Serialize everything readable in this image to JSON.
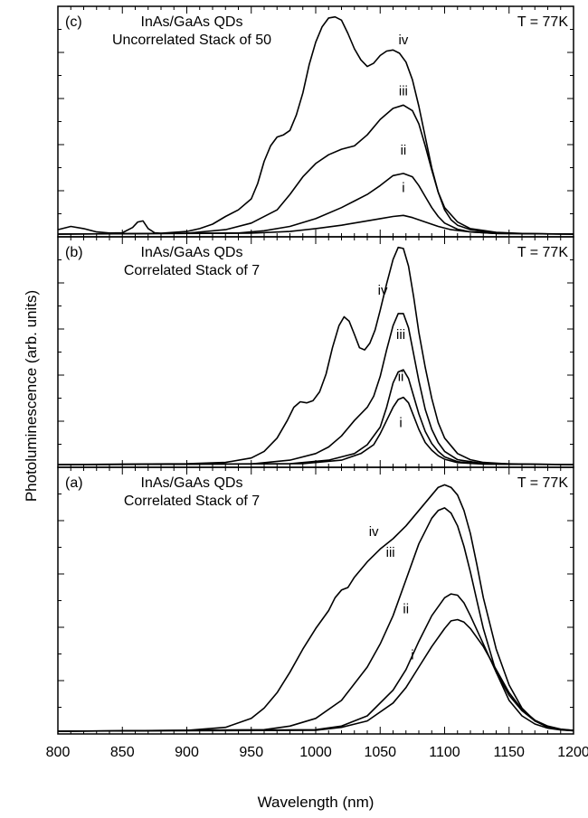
{
  "figure": {
    "ylabel": "Photoluminescence    (arb. units)",
    "xlabel": "Wavelength (nm)"
  },
  "chart_data": [
    {
      "type": "line",
      "panel": "(c)",
      "title": "InAs/GaAs QDs",
      "subtitle": "Uncorrelated Stack of 50",
      "temperature": "T = 77K",
      "xlabel": "Wavelength (nm)",
      "ylabel": "Photoluminescence (arb. units)",
      "xlim": [
        800,
        1200
      ],
      "ylim": [
        0,
        1
      ],
      "x_ticks": [
        800,
        850,
        900,
        950,
        1000,
        1050,
        1100,
        1150,
        1200
      ],
      "grid": false,
      "series": [
        {
          "name": "iv",
          "label_at": [
            1068,
            0.86
          ],
          "x": [
            800,
            810,
            820,
            830,
            840,
            850,
            858,
            862,
            866,
            870,
            875,
            880,
            890,
            900,
            910,
            920,
            930,
            940,
            950,
            955,
            960,
            965,
            970,
            975,
            980,
            985,
            990,
            995,
            1000,
            1005,
            1010,
            1015,
            1020,
            1025,
            1030,
            1035,
            1040,
            1045,
            1050,
            1055,
            1060,
            1065,
            1070,
            1075,
            1080,
            1085,
            1090,
            1095,
            1100,
            1105,
            1110,
            1120,
            1130,
            1140,
            1150,
            1160,
            1180,
            1200
          ],
          "y": [
            0.02,
            0.035,
            0.025,
            0.01,
            0.005,
            0.006,
            0.03,
            0.055,
            0.06,
            0.025,
            0.006,
            0.004,
            0.008,
            0.012,
            0.025,
            0.045,
            0.08,
            0.11,
            0.16,
            0.23,
            0.33,
            0.4,
            0.44,
            0.45,
            0.47,
            0.54,
            0.64,
            0.77,
            0.87,
            0.94,
            0.98,
            0.985,
            0.97,
            0.91,
            0.84,
            0.79,
            0.76,
            0.775,
            0.81,
            0.83,
            0.835,
            0.82,
            0.78,
            0.7,
            0.58,
            0.44,
            0.3,
            0.19,
            0.11,
            0.065,
            0.04,
            0.02,
            0.012,
            0.007,
            0.004,
            0.002,
            0.001,
            0
          ]
        },
        {
          "name": "iii",
          "label_at": [
            1068,
            0.63
          ],
          "x": [
            800,
            900,
            930,
            950,
            970,
            980,
            990,
            1000,
            1010,
            1020,
            1030,
            1040,
            1050,
            1060,
            1068,
            1075,
            1080,
            1085,
            1090,
            1095,
            1100,
            1110,
            1120,
            1140,
            1160,
            1200
          ],
          "y": [
            0,
            0.004,
            0.02,
            0.05,
            0.11,
            0.18,
            0.26,
            0.32,
            0.36,
            0.385,
            0.4,
            0.45,
            0.52,
            0.57,
            0.585,
            0.56,
            0.5,
            0.4,
            0.29,
            0.19,
            0.12,
            0.055,
            0.025,
            0.008,
            0.003,
            0
          ]
        },
        {
          "name": "ii",
          "label_at": [
            1068,
            0.36
          ],
          "x": [
            800,
            940,
            960,
            980,
            1000,
            1020,
            1030,
            1040,
            1050,
            1060,
            1068,
            1075,
            1080,
            1085,
            1090,
            1095,
            1100,
            1110,
            1120,
            1140,
            1200
          ],
          "y": [
            0,
            0.005,
            0.015,
            0.035,
            0.07,
            0.12,
            0.15,
            0.18,
            0.22,
            0.265,
            0.275,
            0.26,
            0.22,
            0.17,
            0.12,
            0.08,
            0.05,
            0.022,
            0.01,
            0.003,
            0
          ]
        },
        {
          "name": "i",
          "label_at": [
            1068,
            0.19
          ],
          "x": [
            800,
            950,
            980,
            1000,
            1020,
            1035,
            1050,
            1060,
            1068,
            1075,
            1085,
            1095,
            1105,
            1120,
            1140,
            1200
          ],
          "y": [
            0,
            0.004,
            0.012,
            0.025,
            0.04,
            0.055,
            0.07,
            0.08,
            0.085,
            0.075,
            0.055,
            0.035,
            0.02,
            0.01,
            0.003,
            0
          ]
        }
      ]
    },
    {
      "type": "line",
      "panel": "(b)",
      "title": "InAs/GaAs QDs",
      "subtitle": "Correlated Stack of 7",
      "temperature": "T = 77K",
      "xlabel": "Wavelength (nm)",
      "ylabel": "Photoluminescence (arb. units)",
      "xlim": [
        800,
        1200
      ],
      "ylim": [
        0,
        1
      ],
      "x_ticks": [
        800,
        850,
        900,
        950,
        1000,
        1050,
        1100,
        1150,
        1200
      ],
      "grid": false,
      "series": [
        {
          "name": "iv",
          "label_at": [
            1052,
            0.77
          ],
          "x": [
            800,
            900,
            930,
            950,
            960,
            970,
            978,
            983,
            988,
            993,
            998,
            1003,
            1008,
            1013,
            1018,
            1022,
            1026,
            1030,
            1034,
            1038,
            1042,
            1046,
            1050,
            1055,
            1060,
            1064,
            1068,
            1072,
            1076,
            1080,
            1085,
            1090,
            1095,
            1100,
            1110,
            1120,
            1130,
            1150,
            1200
          ],
          "y": [
            0,
            0.004,
            0.01,
            0.03,
            0.06,
            0.12,
            0.2,
            0.26,
            0.285,
            0.28,
            0.29,
            0.33,
            0.41,
            0.53,
            0.63,
            0.67,
            0.65,
            0.59,
            0.53,
            0.52,
            0.55,
            0.61,
            0.7,
            0.82,
            0.93,
            0.985,
            0.98,
            0.9,
            0.76,
            0.6,
            0.44,
            0.3,
            0.19,
            0.12,
            0.05,
            0.022,
            0.01,
            0.003,
            0
          ]
        },
        {
          "name": "iii",
          "label_at": [
            1066,
            0.57
          ],
          "x": [
            800,
            950,
            980,
            1000,
            1010,
            1020,
            1030,
            1040,
            1045,
            1050,
            1055,
            1060,
            1064,
            1068,
            1072,
            1076,
            1080,
            1085,
            1090,
            1095,
            1100,
            1110,
            1130,
            1200
          ],
          "y": [
            0,
            0.003,
            0.02,
            0.05,
            0.08,
            0.13,
            0.2,
            0.26,
            0.31,
            0.4,
            0.52,
            0.63,
            0.685,
            0.685,
            0.62,
            0.5,
            0.38,
            0.25,
            0.16,
            0.1,
            0.06,
            0.022,
            0.005,
            0
          ]
        },
        {
          "name": "ii",
          "label_at": [
            1066,
            0.38
          ],
          "x": [
            800,
            980,
            1010,
            1030,
            1040,
            1050,
            1055,
            1060,
            1064,
            1068,
            1072,
            1076,
            1080,
            1085,
            1090,
            1095,
            1100,
            1110,
            1130,
            1200
          ],
          "y": [
            0,
            0.004,
            0.02,
            0.05,
            0.09,
            0.17,
            0.26,
            0.37,
            0.42,
            0.43,
            0.39,
            0.31,
            0.23,
            0.15,
            0.095,
            0.06,
            0.035,
            0.013,
            0.003,
            0
          ]
        },
        {
          "name": "i",
          "label_at": [
            1066,
            0.17
          ],
          "x": [
            800,
            990,
            1020,
            1035,
            1045,
            1050,
            1055,
            1060,
            1064,
            1068,
            1072,
            1076,
            1080,
            1085,
            1090,
            1095,
            1100,
            1110,
            1130,
            1200
          ],
          "y": [
            0,
            0.004,
            0.02,
            0.05,
            0.09,
            0.14,
            0.2,
            0.26,
            0.295,
            0.305,
            0.28,
            0.22,
            0.16,
            0.1,
            0.065,
            0.04,
            0.024,
            0.009,
            0.002,
            0
          ]
        }
      ]
    },
    {
      "type": "line",
      "panel": "(a)",
      "title": "InAs/GaAs QDs",
      "subtitle": "Correlated Stack of 7",
      "temperature": "T = 77K",
      "xlabel": "Wavelength (nm)",
      "ylabel": "Photoluminescence (arb. units)",
      "xlim": [
        800,
        1200
      ],
      "ylim": [
        0,
        1
      ],
      "x_ticks": [
        800,
        850,
        900,
        950,
        1000,
        1050,
        1100,
        1150,
        1200
      ],
      "grid": false,
      "series": [
        {
          "name": "iv",
          "label_at": [
            1045,
            0.76
          ],
          "x": [
            800,
            900,
            930,
            950,
            960,
            970,
            980,
            990,
            1000,
            1010,
            1015,
            1020,
            1025,
            1030,
            1040,
            1050,
            1060,
            1070,
            1080,
            1090,
            1095,
            1100,
            1105,
            1110,
            1115,
            1120,
            1125,
            1130,
            1140,
            1150,
            1160,
            1170,
            1180,
            1190,
            1200
          ],
          "y": [
            0,
            0.003,
            0.015,
            0.05,
            0.09,
            0.15,
            0.23,
            0.32,
            0.4,
            0.47,
            0.52,
            0.55,
            0.56,
            0.6,
            0.66,
            0.71,
            0.75,
            0.8,
            0.86,
            0.92,
            0.95,
            0.96,
            0.95,
            0.92,
            0.86,
            0.77,
            0.65,
            0.52,
            0.32,
            0.18,
            0.09,
            0.04,
            0.016,
            0.006,
            0.002
          ]
        },
        {
          "name": "iii",
          "label_at": [
            1058,
            0.68
          ],
          "x": [
            800,
            960,
            980,
            1000,
            1020,
            1040,
            1050,
            1060,
            1070,
            1080,
            1090,
            1095,
            1100,
            1105,
            1110,
            1115,
            1120,
            1125,
            1130,
            1140,
            1150,
            1160,
            1170,
            1180,
            1190,
            1200
          ],
          "y": [
            0,
            0.006,
            0.02,
            0.05,
            0.12,
            0.25,
            0.34,
            0.45,
            0.59,
            0.73,
            0.83,
            0.86,
            0.87,
            0.85,
            0.8,
            0.72,
            0.62,
            0.51,
            0.4,
            0.23,
            0.12,
            0.06,
            0.028,
            0.012,
            0.005,
            0.002
          ]
        },
        {
          "name": "ii",
          "label_at": [
            1070,
            0.46
          ],
          "x": [
            800,
            1000,
            1020,
            1040,
            1060,
            1070,
            1080,
            1090,
            1100,
            1105,
            1110,
            1115,
            1120,
            1130,
            1140,
            1150,
            1160,
            1170,
            1180,
            1190,
            1200
          ],
          "y": [
            0,
            0.006,
            0.02,
            0.06,
            0.16,
            0.24,
            0.35,
            0.45,
            0.52,
            0.535,
            0.53,
            0.5,
            0.45,
            0.34,
            0.23,
            0.14,
            0.08,
            0.04,
            0.018,
            0.007,
            0.003
          ]
        },
        {
          "name": "i",
          "label_at": [
            1075,
            0.28
          ],
          "x": [
            800,
            1000,
            1020,
            1040,
            1060,
            1070,
            1080,
            1090,
            1100,
            1105,
            1110,
            1115,
            1120,
            1130,
            1140,
            1150,
            1160,
            1170,
            1180,
            1190,
            1200
          ],
          "y": [
            0,
            0.004,
            0.015,
            0.04,
            0.11,
            0.17,
            0.25,
            0.33,
            0.4,
            0.43,
            0.435,
            0.425,
            0.4,
            0.33,
            0.24,
            0.15,
            0.085,
            0.043,
            0.02,
            0.008,
            0.003
          ]
        }
      ]
    }
  ]
}
